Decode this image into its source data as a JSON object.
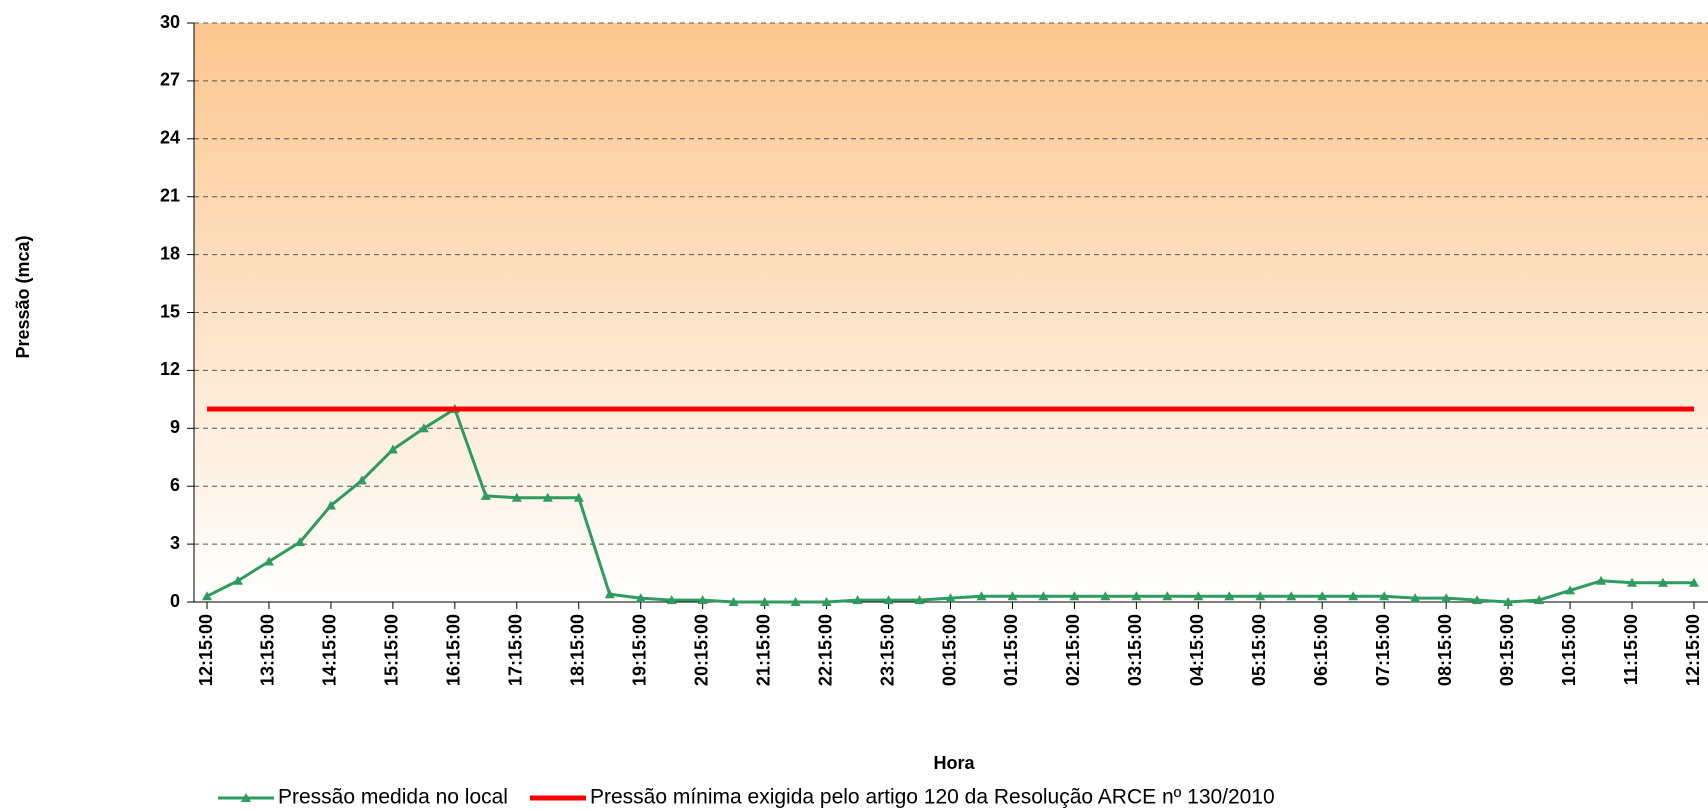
{
  "chart_data": {
    "type": "line",
    "x_label": "Hora",
    "y_label": "Pressão (mca)",
    "categories": [
      "12:15:00",
      null,
      "13:15:00",
      null,
      "14:15:00",
      null,
      "15:15:00",
      null,
      "16:15:00",
      null,
      "17:15:00",
      null,
      "18:15:00",
      null,
      "19:15:00",
      null,
      "20:15:00",
      null,
      "21:15:00",
      null,
      "22:15:00",
      null,
      "23:15:00",
      null,
      "00:15:00",
      null,
      "01:15:00",
      null,
      "02:15:00",
      null,
      "03:15:00",
      null,
      "04:15:00",
      null,
      "05:15:00",
      null,
      "06:15:00",
      null,
      "07:15:00",
      null,
      "08:15:00",
      null,
      "09:15:00",
      null,
      "10:15:00",
      null,
      "11:15:00",
      null,
      "12:15:00"
    ],
    "series": [
      {
        "name": "Pressão medida no local",
        "color": "#2e9b5f",
        "marker": "triangle",
        "values": [
          0.3,
          1.1,
          2.1,
          3.1,
          5.0,
          6.3,
          7.9,
          9.0,
          10.0,
          5.5,
          5.4,
          5.4,
          5.4,
          0.4,
          0.2,
          0.1,
          0.1,
          0,
          0,
          0,
          0,
          0.1,
          0.1,
          0.1,
          0.2,
          0.3,
          0.3,
          0.3,
          0.3,
          0.3,
          0.3,
          0.3,
          0.3,
          0.3,
          0.3,
          0.3,
          0.3,
          0.3,
          0.3,
          0.2,
          0.2,
          0.1,
          0,
          0.1,
          0.6,
          1.1,
          1.0,
          1.0,
          1.0
        ]
      },
      {
        "name": "Pressão mínima exigida pelo artigo 120 da Resolução ARCE nº 130/2010",
        "color": "#ff0000",
        "values": [
          10,
          10,
          10,
          10,
          10,
          10,
          10,
          10,
          10,
          10,
          10,
          10,
          10,
          10,
          10,
          10,
          10,
          10,
          10,
          10,
          10,
          10,
          10,
          10,
          10,
          10,
          10,
          10,
          10,
          10,
          10,
          10,
          10,
          10,
          10,
          10,
          10,
          10,
          10,
          10,
          10,
          10,
          10,
          10,
          10,
          10,
          10,
          10,
          10
        ]
      }
    ],
    "ylim": [
      0,
      30
    ],
    "yticks": [
      0,
      3,
      6,
      9,
      12,
      15,
      18,
      21,
      24,
      27,
      30
    ],
    "grid": true,
    "legend": "bottom"
  }
}
